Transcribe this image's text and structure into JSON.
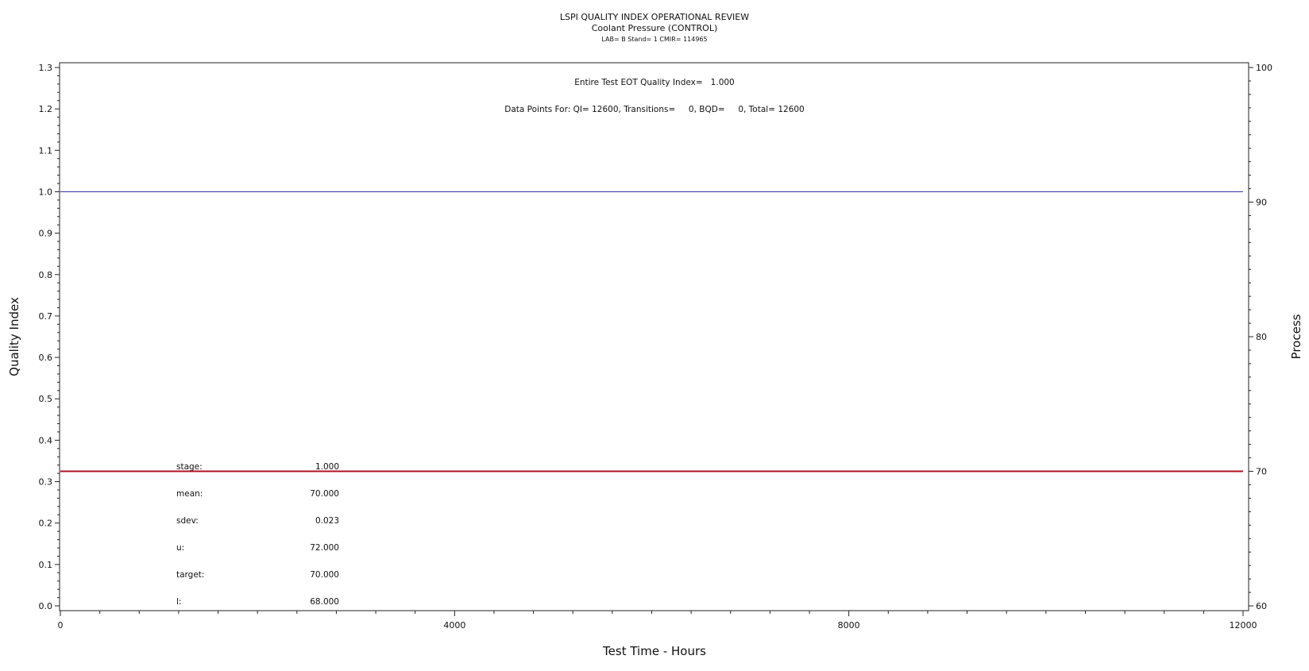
{
  "chart_data": {
    "type": "line",
    "title": "LSPI QUALITY INDEX OPERATIONAL REVIEW",
    "subtitle": "Coolant Pressure (CONTROL)",
    "subsubtitle": "LAB= B Stand= 1 CMIR= 114965",
    "xlabel": "Test Time - Hours",
    "ylabel_left": "Quality Index",
    "ylabel_right": "Process",
    "xlim": [
      0,
      12000
    ],
    "ylim_left": [
      0.0,
      1.3
    ],
    "ylim_right": [
      60,
      100
    ],
    "x_ticks": [
      0,
      4000,
      8000,
      12000
    ],
    "y_left_ticks": [
      "0.0",
      "0.1",
      "0.2",
      "0.3",
      "0.4",
      "0.5",
      "0.6",
      "0.7",
      "0.8",
      "0.9",
      "1.0",
      "1.1",
      "1.2",
      "1.3"
    ],
    "y_right_ticks": [
      "60",
      "70",
      "80",
      "90",
      "100"
    ],
    "annotations": {
      "eot_quality_index": "Entire Test EOT Quality Index=   1.000",
      "data_points": "Data Points For: QI= 12600, Transitions=     0, BQD=     0, Total= 12600"
    },
    "series": [
      {
        "name": "",
        "axis": "left",
        "color": "#3a3aa8",
        "x": [
          0,
          12000
        ],
        "y": [
          1.0,
          1.0
        ]
      },
      {
        "name": "",
        "axis": "right",
        "color": "#b01020",
        "x": [
          0,
          12000
        ],
        "y": [
          70.0,
          70.0
        ]
      }
    ],
    "stats": [
      {
        "label": "stage:",
        "value": "1.000"
      },
      {
        "label": "mean:",
        "value": "70.000"
      },
      {
        "label": "sdev:",
        "value": "0.023"
      },
      {
        "label": "u:",
        "value": "72.000"
      },
      {
        "label": "target:",
        "value": "70.000"
      },
      {
        "label": "l:",
        "value": "68.000"
      }
    ]
  }
}
